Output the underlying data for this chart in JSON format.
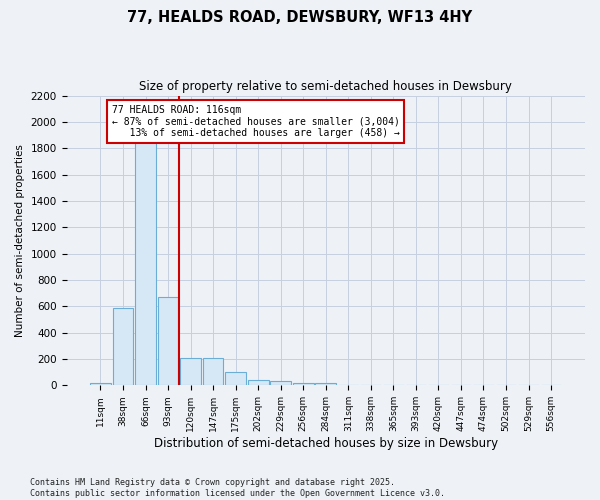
{
  "title1": "77, HEALDS ROAD, DEWSBURY, WF13 4HY",
  "title2": "Size of property relative to semi-detached houses in Dewsbury",
  "xlabel": "Distribution of semi-detached houses by size in Dewsbury",
  "ylabel": "Number of semi-detached properties",
  "categories": [
    "11sqm",
    "38sqm",
    "66sqm",
    "93sqm",
    "120sqm",
    "147sqm",
    "175sqm",
    "202sqm",
    "229sqm",
    "256sqm",
    "284sqm",
    "311sqm",
    "338sqm",
    "365sqm",
    "393sqm",
    "420sqm",
    "447sqm",
    "474sqm",
    "502sqm",
    "529sqm",
    "556sqm"
  ],
  "values": [
    20,
    590,
    1850,
    670,
    210,
    210,
    100,
    40,
    30,
    20,
    20,
    0,
    0,
    0,
    0,
    0,
    0,
    0,
    0,
    0,
    0
  ],
  "bar_color": "#d6e8f5",
  "bar_edge_color": "#6aaed6",
  "vline_color": "#cc0000",
  "vline_x": 3.5,
  "annotation_line1": "77 HEALDS ROAD: 116sqm",
  "annotation_line2": "← 87% of semi-detached houses are smaller (3,004)",
  "annotation_line3": "   13% of semi-detached houses are larger (458) →",
  "annotation_box_edge_color": "#cc0000",
  "ylim": [
    0,
    2200
  ],
  "yticks": [
    0,
    200,
    400,
    600,
    800,
    1000,
    1200,
    1400,
    1600,
    1800,
    2000,
    2200
  ],
  "footer": "Contains HM Land Registry data © Crown copyright and database right 2025.\nContains public sector information licensed under the Open Government Licence v3.0.",
  "background_color": "#eef2f7",
  "plot_background_color": "#eef2f7",
  "grid_color": "#c5cfe0"
}
